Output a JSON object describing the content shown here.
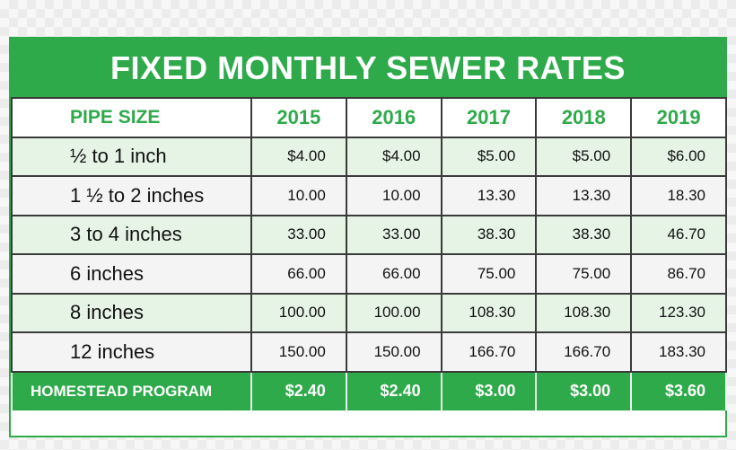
{
  "title": "FIXED MONTHLY SEWER RATES",
  "header": {
    "pipe_size": "PIPE SIZE",
    "years": [
      "2015",
      "2016",
      "2017",
      "2018",
      "2019"
    ]
  },
  "rows": [
    {
      "label": "½ to 1 inch",
      "values": [
        "$4.00",
        "$4.00",
        "$5.00",
        "$5.00",
        "$6.00"
      ]
    },
    {
      "label": "1 ½ to 2 inches",
      "values": [
        "10.00",
        "10.00",
        "13.30",
        "13.30",
        "18.30"
      ]
    },
    {
      "label": "3 to 4 inches",
      "values": [
        "33.00",
        "33.00",
        "38.30",
        "38.30",
        "46.70"
      ]
    },
    {
      "label": "6 inches",
      "values": [
        "66.00",
        "66.00",
        "75.00",
        "75.00",
        "86.70"
      ]
    },
    {
      "label": "8 inches",
      "values": [
        "100.00",
        "100.00",
        "108.30",
        "108.30",
        "123.30"
      ]
    },
    {
      "label": "12 inches",
      "values": [
        "150.00",
        "150.00",
        "166.70",
        "166.70",
        "183.30"
      ]
    }
  ],
  "footer": {
    "label": "HOMESTEAD PROGRAM",
    "values": [
      "$2.40",
      "$2.40",
      "$3.00",
      "$3.00",
      "$3.60"
    ]
  },
  "colors": {
    "accent_green": "#2eaa4a",
    "row_tint": "#e6f4e6",
    "row_plain": "#f4f4f4"
  }
}
